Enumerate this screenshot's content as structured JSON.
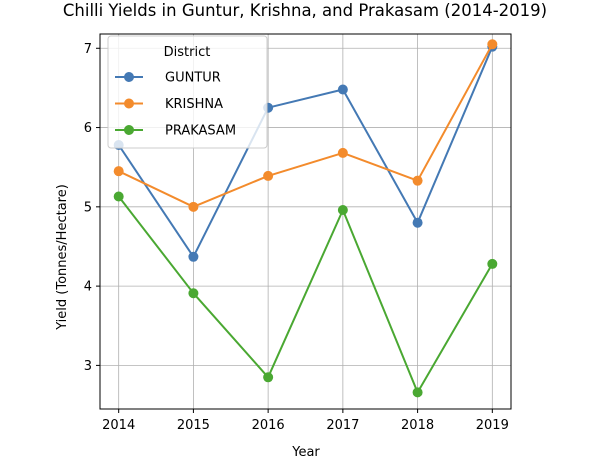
{
  "chart_data": {
    "type": "line",
    "title": "Chilli Yields in Guntur, Krishna, and Prakasam (2014-2019)",
    "xlabel": "Year",
    "ylabel": "Yield (Tonnes/Hectare)",
    "x": [
      2014,
      2015,
      2016,
      2017,
      2018,
      2019
    ],
    "x_tick_labels": [
      "2014",
      "2015",
      "2016",
      "2017",
      "2018",
      "2019"
    ],
    "y_ticks": [
      3,
      4,
      5,
      6,
      7
    ],
    "y_tick_labels": [
      "3",
      "4",
      "5",
      "6",
      "7"
    ],
    "xlim": [
      2013.75,
      2019.25
    ],
    "ylim": [
      2.45,
      7.18
    ],
    "grid": true,
    "legend": {
      "title": "District",
      "placement": "upper-left"
    },
    "series": [
      {
        "name": "GUNTUR",
        "color": "#4479b4",
        "values": [
          5.78,
          4.37,
          6.25,
          6.48,
          4.8,
          7.02
        ]
      },
      {
        "name": "KRISHNA",
        "color": "#f38b2c",
        "values": [
          5.45,
          5.0,
          5.39,
          5.68,
          5.33,
          7.05
        ]
      },
      {
        "name": "PRAKASAM",
        "color": "#4aa832",
        "values": [
          5.13,
          3.91,
          2.85,
          4.96,
          2.66,
          4.28
        ]
      }
    ]
  }
}
